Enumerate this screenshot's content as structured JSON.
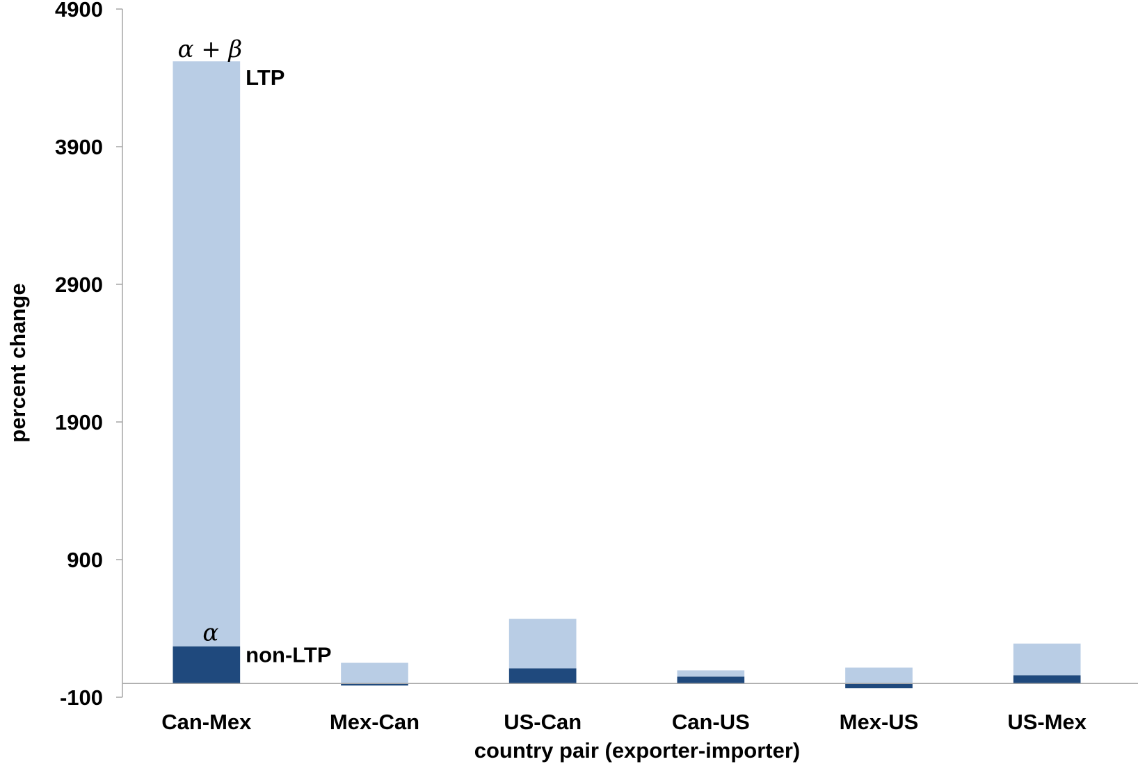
{
  "chart_data": {
    "type": "bar",
    "stacked": true,
    "title": "",
    "xlabel": "country pair (exporter-importer)",
    "ylabel": "percent change",
    "ylim": [
      -100,
      4900
    ],
    "yticks": [
      -100,
      900,
      1900,
      2900,
      3900,
      4900
    ],
    "grid": false,
    "categories": [
      "Can-Mex",
      "Mex-Can",
      "US-Can",
      "Can-US",
      "Mex-US",
      "US-Mex"
    ],
    "series": [
      {
        "name": "non-LTP",
        "color": "#1F497D",
        "values": [
          270,
          -15,
          110,
          50,
          -35,
          60
        ]
      },
      {
        "name": "LTP",
        "color": "#B9CDE5",
        "values": [
          4250,
          150,
          360,
          45,
          115,
          230
        ]
      }
    ],
    "annotations": [
      {
        "text": "α + β",
        "target": "Can-Mex total"
      },
      {
        "text": "LTP",
        "target": "Can-Mex upper segment"
      },
      {
        "text": "α",
        "target": "Can-Mex lower segment"
      },
      {
        "text": "non-LTP",
        "target": "Can-Mex lower segment"
      }
    ]
  }
}
